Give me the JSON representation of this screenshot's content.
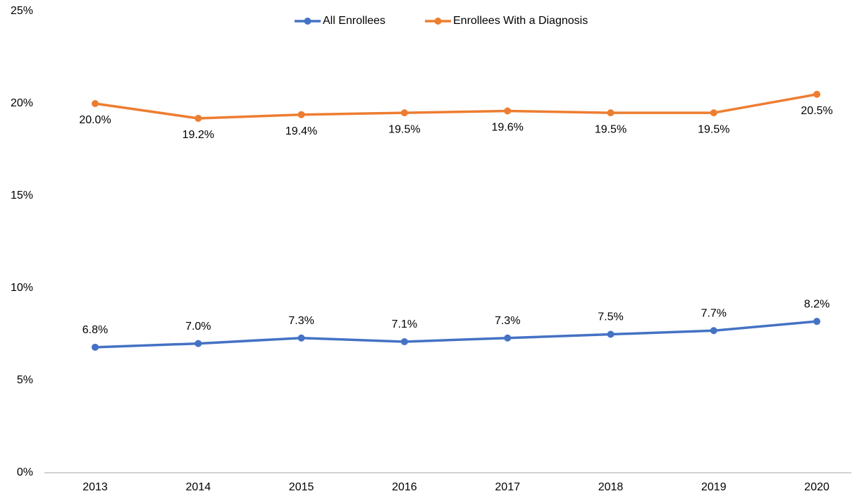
{
  "chart_data": {
    "type": "line",
    "categories": [
      "2013",
      "2014",
      "2015",
      "2016",
      "2017",
      "2018",
      "2019",
      "2020"
    ],
    "series": [
      {
        "name": "All Enrollees",
        "color": "#4472c4",
        "values": [
          6.8,
          7.0,
          7.3,
          7.1,
          7.3,
          7.5,
          7.7,
          8.2
        ],
        "value_labels": [
          "6.8%",
          "7.0%",
          "7.3%",
          "7.1%",
          "7.3%",
          "7.5%",
          "7.7%",
          "8.2%"
        ]
      },
      {
        "name": "Enrollees With a Diagnosis",
        "color": "#ed7d31",
        "values": [
          20.0,
          19.2,
          19.4,
          19.5,
          19.6,
          19.5,
          19.5,
          20.5
        ],
        "value_labels": [
          "20.0%",
          "19.2%",
          "19.4%",
          "19.5%",
          "19.6%",
          "19.5%",
          "19.5%",
          "20.5%"
        ]
      }
    ],
    "ylim": [
      0,
      25
    ],
    "yticks": [
      {
        "value": 0,
        "label": "0%"
      },
      {
        "value": 5,
        "label": "5%"
      },
      {
        "value": 10,
        "label": "10%"
      },
      {
        "value": 15,
        "label": "15%"
      },
      {
        "value": 20,
        "label": "20%"
      },
      {
        "value": 25,
        "label": "25%"
      }
    ],
    "grid": false,
    "legend": "top"
  }
}
